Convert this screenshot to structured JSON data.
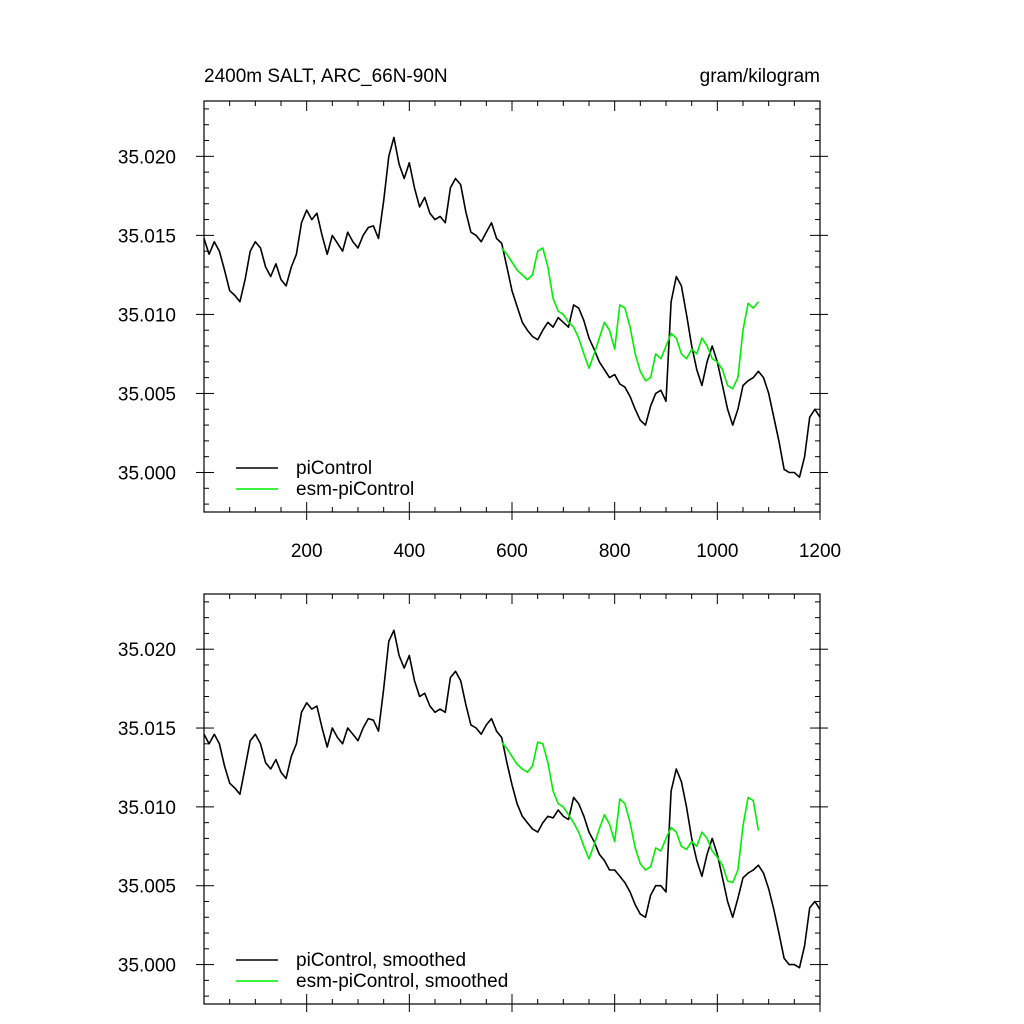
{
  "figure": {
    "title_left": "2400m SALT, ARC_66N-90N",
    "title_right": "gram/kilogram"
  },
  "colors": {
    "piControl": "#000000",
    "esm_piControl": "#00ee00",
    "frame": "#000000",
    "background": "#ffffff"
  },
  "chart_data": [
    {
      "type": "line",
      "panel": "top",
      "xlim": [
        0,
        1200
      ],
      "ylim": [
        34.9975,
        35.0235
      ],
      "x_ticks": [
        200,
        400,
        600,
        800,
        1000,
        1200
      ],
      "x_tick_labels": [
        "200",
        "400",
        "600",
        "800",
        "1000",
        "1200"
      ],
      "y_ticks": [
        35.0,
        35.005,
        35.01,
        35.015,
        35.02
      ],
      "y_tick_labels": [
        "35.000",
        "35.005",
        "35.010",
        "35.015",
        "35.020"
      ],
      "legend": {
        "position": "bottom-left",
        "entries": [
          {
            "series": "piControl",
            "label": "piControl"
          },
          {
            "series": "esm-piControl",
            "label": "esm-piControl"
          }
        ]
      },
      "series": [
        {
          "name": "piControl",
          "color": "#000000",
          "x": [
            0,
            10,
            20,
            30,
            40,
            50,
            60,
            70,
            80,
            90,
            100,
            110,
            120,
            130,
            140,
            150,
            160,
            170,
            180,
            190,
            200,
            210,
            220,
            230,
            240,
            250,
            260,
            270,
            280,
            290,
            300,
            310,
            320,
            330,
            340,
            350,
            360,
            370,
            380,
            390,
            400,
            410,
            420,
            430,
            440,
            450,
            460,
            470,
            480,
            490,
            500,
            510,
            520,
            530,
            540,
            550,
            560,
            570,
            580,
            590,
            600,
            610,
            620,
            630,
            640,
            650,
            660,
            670,
            680,
            690,
            700,
            710,
            720,
            730,
            740,
            750,
            760,
            770,
            780,
            790,
            800,
            810,
            820,
            830,
            840,
            850,
            860,
            870,
            880,
            890,
            900,
            910,
            920,
            930,
            940,
            950,
            960,
            970,
            980,
            990,
            1000,
            1010,
            1020,
            1030,
            1040,
            1050,
            1060,
            1070,
            1080,
            1090,
            1100,
            1110,
            1120,
            1130,
            1140,
            1150,
            1160,
            1170,
            1180,
            1190,
            1200
          ],
          "y": [
            35.0148,
            35.0138,
            35.0146,
            35.014,
            35.0128,
            35.0115,
            35.0112,
            35.0108,
            35.0122,
            35.014,
            35.0146,
            35.0142,
            35.013,
            35.0124,
            35.0132,
            35.0122,
            35.0118,
            35.013,
            35.0138,
            35.0158,
            35.0166,
            35.016,
            35.0164,
            35.015,
            35.0138,
            35.015,
            35.0145,
            35.014,
            35.0152,
            35.0146,
            35.0142,
            35.015,
            35.0155,
            35.0156,
            35.0148,
            35.0172,
            35.02,
            35.0212,
            35.0195,
            35.0186,
            35.0196,
            35.018,
            35.0168,
            35.0174,
            35.0164,
            35.016,
            35.0162,
            35.0158,
            35.018,
            35.0186,
            35.0182,
            35.0165,
            35.0152,
            35.015,
            35.0146,
            35.0152,
            35.0158,
            35.0148,
            35.0145,
            35.013,
            35.0115,
            35.0105,
            35.0095,
            35.009,
            35.0086,
            35.0084,
            35.009,
            35.0095,
            35.0092,
            35.0098,
            35.0095,
            35.0092,
            35.0106,
            35.0104,
            35.0096,
            35.0085,
            35.0078,
            35.007,
            35.0065,
            35.006,
            35.0062,
            35.0056,
            35.0054,
            35.0048,
            35.004,
            35.0033,
            35.003,
            35.0042,
            35.005,
            35.0052,
            35.0045,
            35.0108,
            35.0124,
            35.0118,
            35.01,
            35.008,
            35.0065,
            35.0055,
            35.007,
            35.008,
            35.007,
            35.0055,
            35.004,
            35.003,
            35.004,
            35.0055,
            35.0058,
            35.006,
            35.0064,
            35.006,
            35.005,
            35.0035,
            35.002,
            35.0002,
            35.0,
            35.0,
            34.9997,
            35.001,
            35.0035,
            35.004,
            35.0035
          ]
        },
        {
          "name": "esm-piControl",
          "color": "#00ee00",
          "x": [
            580,
            590,
            600,
            610,
            620,
            630,
            640,
            650,
            660,
            670,
            680,
            690,
            700,
            710,
            720,
            730,
            740,
            750,
            760,
            770,
            780,
            790,
            800,
            810,
            820,
            830,
            840,
            850,
            860,
            870,
            880,
            890,
            900,
            910,
            920,
            930,
            940,
            950,
            960,
            970,
            980,
            990,
            1000,
            1010,
            1020,
            1030,
            1040,
            1050,
            1060,
            1070,
            1080
          ],
          "y": [
            35.0142,
            35.0138,
            35.0133,
            35.0128,
            35.0125,
            35.0122,
            35.0125,
            35.014,
            35.0142,
            35.013,
            35.011,
            35.0102,
            35.01,
            35.0095,
            35.0092,
            35.0085,
            35.0075,
            35.0066,
            35.0075,
            35.0085,
            35.0095,
            35.009,
            35.0078,
            35.0106,
            35.0104,
            35.0092,
            35.0075,
            35.0064,
            35.0058,
            35.006,
            35.0075,
            35.0072,
            35.008,
            35.0088,
            35.0085,
            35.0075,
            35.0072,
            35.0078,
            35.0075,
            35.0085,
            35.008,
            35.0072,
            35.007,
            35.0065,
            35.0055,
            35.0053,
            35.006,
            35.009,
            35.0107,
            35.0104,
            35.0108
          ]
        }
      ]
    },
    {
      "type": "line",
      "panel": "bottom",
      "xlim": [
        0,
        1200
      ],
      "ylim": [
        34.9975,
        35.0235
      ],
      "x_ticks": [
        200,
        400,
        600,
        800,
        1000,
        1200
      ],
      "y_ticks": [
        35.0,
        35.005,
        35.01,
        35.015,
        35.02
      ],
      "y_tick_labels": [
        "35.000",
        "35.005",
        "35.010",
        "35.015",
        "35.020"
      ],
      "legend": {
        "position": "bottom-left",
        "entries": [
          {
            "series": "piControl",
            "label": "piControl, smoothed"
          },
          {
            "series": "esm-piControl",
            "label": "esm-piControl, smoothed"
          }
        ]
      },
      "series": [
        {
          "name": "piControl",
          "color": "#000000",
          "smoothed": true,
          "x": [
            0,
            10,
            20,
            30,
            40,
            50,
            60,
            70,
            80,
            90,
            100,
            110,
            120,
            130,
            140,
            150,
            160,
            170,
            180,
            190,
            200,
            210,
            220,
            230,
            240,
            250,
            260,
            270,
            280,
            290,
            300,
            310,
            320,
            330,
            340,
            350,
            360,
            370,
            380,
            390,
            400,
            410,
            420,
            430,
            440,
            450,
            460,
            470,
            480,
            490,
            500,
            510,
            520,
            530,
            540,
            550,
            560,
            570,
            580,
            590,
            600,
            610,
            620,
            630,
            640,
            650,
            660,
            670,
            680,
            690,
            700,
            710,
            720,
            730,
            740,
            750,
            760,
            770,
            780,
            790,
            800,
            810,
            820,
            830,
            840,
            850,
            860,
            870,
            880,
            890,
            900,
            910,
            920,
            930,
            940,
            950,
            960,
            970,
            980,
            990,
            1000,
            1010,
            1020,
            1030,
            1040,
            1050,
            1060,
            1070,
            1080,
            1090,
            1100,
            1110,
            1120,
            1130,
            1140,
            1150,
            1160,
            1170,
            1180,
            1190,
            1200
          ],
          "y": [
            35.0146,
            35.014,
            35.0146,
            35.014,
            35.0126,
            35.0115,
            35.0112,
            35.0108,
            35.0125,
            35.0142,
            35.0146,
            35.014,
            35.0128,
            35.0124,
            35.013,
            35.0122,
            35.0118,
            35.0132,
            35.014,
            35.016,
            35.0166,
            35.0162,
            35.0164,
            35.015,
            35.0138,
            35.015,
            35.0144,
            35.014,
            35.015,
            35.0146,
            35.0142,
            35.015,
            35.0156,
            35.0155,
            35.0148,
            35.0175,
            35.0205,
            35.0212,
            35.0196,
            35.0188,
            35.0196,
            35.018,
            35.017,
            35.0172,
            35.0164,
            35.016,
            35.0162,
            35.016,
            35.0182,
            35.0186,
            35.018,
            35.0165,
            35.0152,
            35.015,
            35.0146,
            35.0152,
            35.0156,
            35.0148,
            35.0144,
            35.0128,
            35.0114,
            35.0102,
            35.0094,
            35.009,
            35.0086,
            35.0084,
            35.009,
            35.0094,
            35.0093,
            35.0098,
            35.0094,
            35.0092,
            35.0106,
            35.0102,
            35.0094,
            35.0084,
            35.0078,
            35.007,
            35.0066,
            35.006,
            35.006,
            35.0056,
            35.0052,
            35.0046,
            35.0038,
            35.0032,
            35.003,
            35.0044,
            35.005,
            35.005,
            35.0046,
            35.011,
            35.0124,
            35.0116,
            35.01,
            35.008,
            35.0066,
            35.0056,
            35.007,
            35.008,
            35.007,
            35.0055,
            35.004,
            35.003,
            35.0042,
            35.0055,
            35.0058,
            35.006,
            35.0063,
            35.0058,
            35.0048,
            35.0035,
            35.002,
            35.0004,
            35.0,
            35.0,
            34.9998,
            35.0012,
            35.0036,
            35.004,
            35.0035
          ]
        },
        {
          "name": "esm-piControl",
          "color": "#00ee00",
          "smoothed": true,
          "x": [
            580,
            590,
            600,
            610,
            620,
            630,
            640,
            650,
            660,
            670,
            680,
            690,
            700,
            710,
            720,
            730,
            740,
            750,
            760,
            770,
            780,
            790,
            800,
            810,
            820,
            830,
            840,
            850,
            860,
            870,
            880,
            890,
            900,
            910,
            920,
            930,
            940,
            950,
            960,
            970,
            980,
            990,
            1000,
            1010,
            1020,
            1030,
            1040,
            1050,
            1060,
            1070,
            1080
          ],
          "y": [
            35.0141,
            35.0137,
            35.0132,
            35.0127,
            35.0124,
            35.0122,
            35.0126,
            35.0141,
            35.014,
            35.0128,
            35.011,
            35.0102,
            35.01,
            35.0095,
            35.009,
            35.0084,
            35.0075,
            35.0067,
            35.0076,
            35.0086,
            35.0095,
            35.0089,
            35.0078,
            35.0105,
            35.0102,
            35.009,
            35.0074,
            35.0064,
            35.006,
            35.0062,
            35.0074,
            35.0072,
            35.008,
            35.0087,
            35.0084,
            35.0075,
            35.0073,
            35.0078,
            35.0075,
            35.0084,
            35.008,
            35.0072,
            35.0068,
            35.0063,
            35.0053,
            35.0052,
            35.006,
            35.0088,
            35.0106,
            35.0104,
            35.0085
          ]
        }
      ]
    }
  ]
}
